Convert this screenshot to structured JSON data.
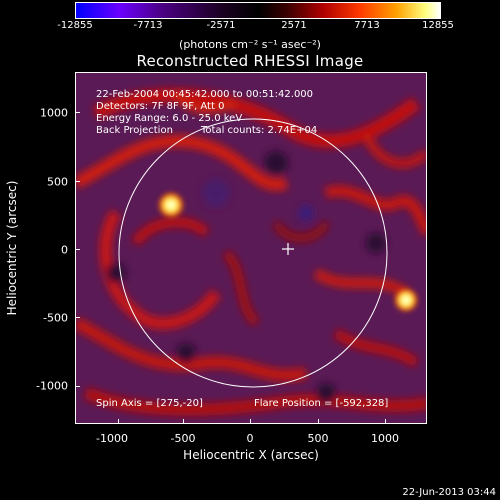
{
  "colorbar": {
    "ticks": [
      "-12855",
      "-7713",
      "-2571",
      "2571",
      "7713",
      "12855"
    ],
    "units": "(photons cm⁻² s⁻¹ asec⁻²)"
  },
  "title": "Reconstructed RHESSI Image",
  "info": {
    "line1": "22-Feb-2004 00:45:42.000 to 00:51:42.000",
    "line2": "Detectors: 7F 8F 9F, Att 0",
    "line3": "Energy Range: 6.0 - 25.0 keV",
    "line4a": "Back Projection",
    "line4b": "Total counts: 2.74E+04"
  },
  "footer": {
    "spin_axis": "Spin Axis = [275,-20]",
    "flare_position": "Flare Position = [-592,328]"
  },
  "axes": {
    "xlabel": "Heliocentric X (arcsec)",
    "ylabel": "Heliocentric Y (arcsec)",
    "xticks": [
      "-1000",
      "-500",
      "0",
      "500",
      "1000"
    ],
    "yticks": [
      "1000",
      "500",
      "0",
      "-500",
      "-1000"
    ]
  },
  "timestamp": "22-Jun-2013 03:44",
  "colors": {
    "background": "#000000",
    "limb_circle": "#ffffff"
  }
}
